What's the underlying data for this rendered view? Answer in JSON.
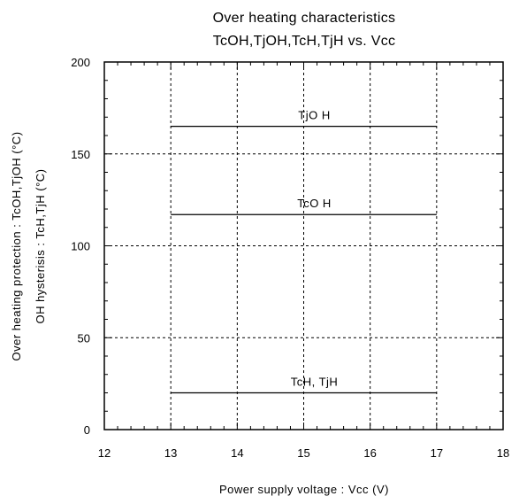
{
  "chart_data": {
    "type": "line",
    "title": "Over heating characteristics",
    "subtitle": "TcOH,TjOH,TcH,TjH vs. Vcc",
    "xlabel": "Power supply voltage : Vcc (V)",
    "ylabel_lines": [
      "Over heating protection : TcOH,TjOH (°C)",
      "OH hysterisis : TcH,TjH (°C)"
    ],
    "xlim": [
      12,
      18
    ],
    "ylim": [
      0,
      200
    ],
    "x_ticks": [
      12,
      13,
      14,
      15,
      16,
      17,
      18
    ],
    "y_ticks": [
      0,
      50,
      100,
      150,
      200
    ],
    "grid": true,
    "series": [
      {
        "name": "TjO H",
        "x": [
          13,
          17
        ],
        "y": [
          165,
          165
        ]
      },
      {
        "name": "TcO H",
        "x": [
          13,
          17
        ],
        "y": [
          117,
          117
        ]
      },
      {
        "name": "TcH, TjH",
        "x": [
          13,
          17
        ],
        "y": [
          20,
          20
        ]
      }
    ]
  }
}
